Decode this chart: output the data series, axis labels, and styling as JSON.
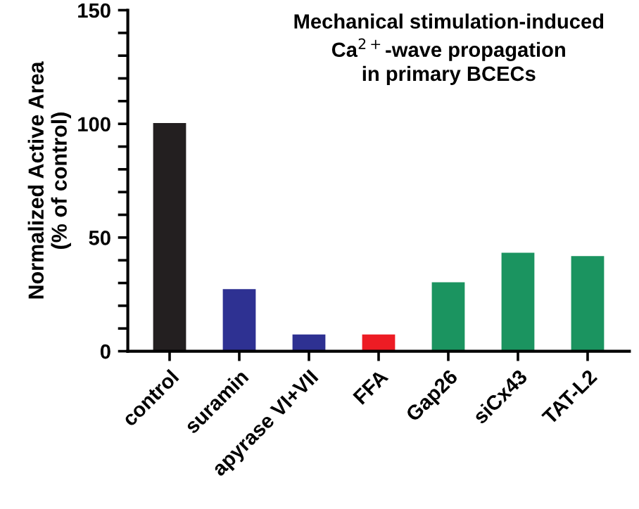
{
  "chart_data": {
    "type": "bar",
    "title": "Mechanical stimulation-induced\nCa$^{2+}$-wave propagation\nin primary BCECs",
    "ylabel": "Normalized Active Area\n(% of control)",
    "categories": [
      "control",
      "suramin",
      "apyrase VI+VII",
      "FFA",
      "Gap26",
      "siCx43",
      "TAT-L2"
    ],
    "values": [
      100,
      27,
      7,
      7,
      30,
      43,
      41.5
    ],
    "colors": [
      "#231f20",
      "#2e3192",
      "#2e3192",
      "#ed1c24",
      "#1b9460",
      "#1b9460",
      "#1b9460"
    ],
    "ylim": [
      0,
      150
    ],
    "yticks": [
      0,
      {
        "value": 10,
        "label": null
      },
      {
        "value": 20,
        "label": null
      },
      {
        "value": 30,
        "label": null
      },
      {
        "value": 40,
        "label": null
      },
      50,
      {
        "value": 60,
        "label": null
      },
      {
        "value": 70,
        "label": null
      },
      {
        "value": 80,
        "label": null
      },
      {
        "value": 90,
        "label": null
      },
      100,
      {
        "value": 110,
        "label": null
      },
      {
        "value": 120,
        "label": null
      },
      {
        "value": 130,
        "label": null
      },
      {
        "value": 140,
        "label": null
      },
      150
    ],
    "grid": false,
    "legend": false
  }
}
